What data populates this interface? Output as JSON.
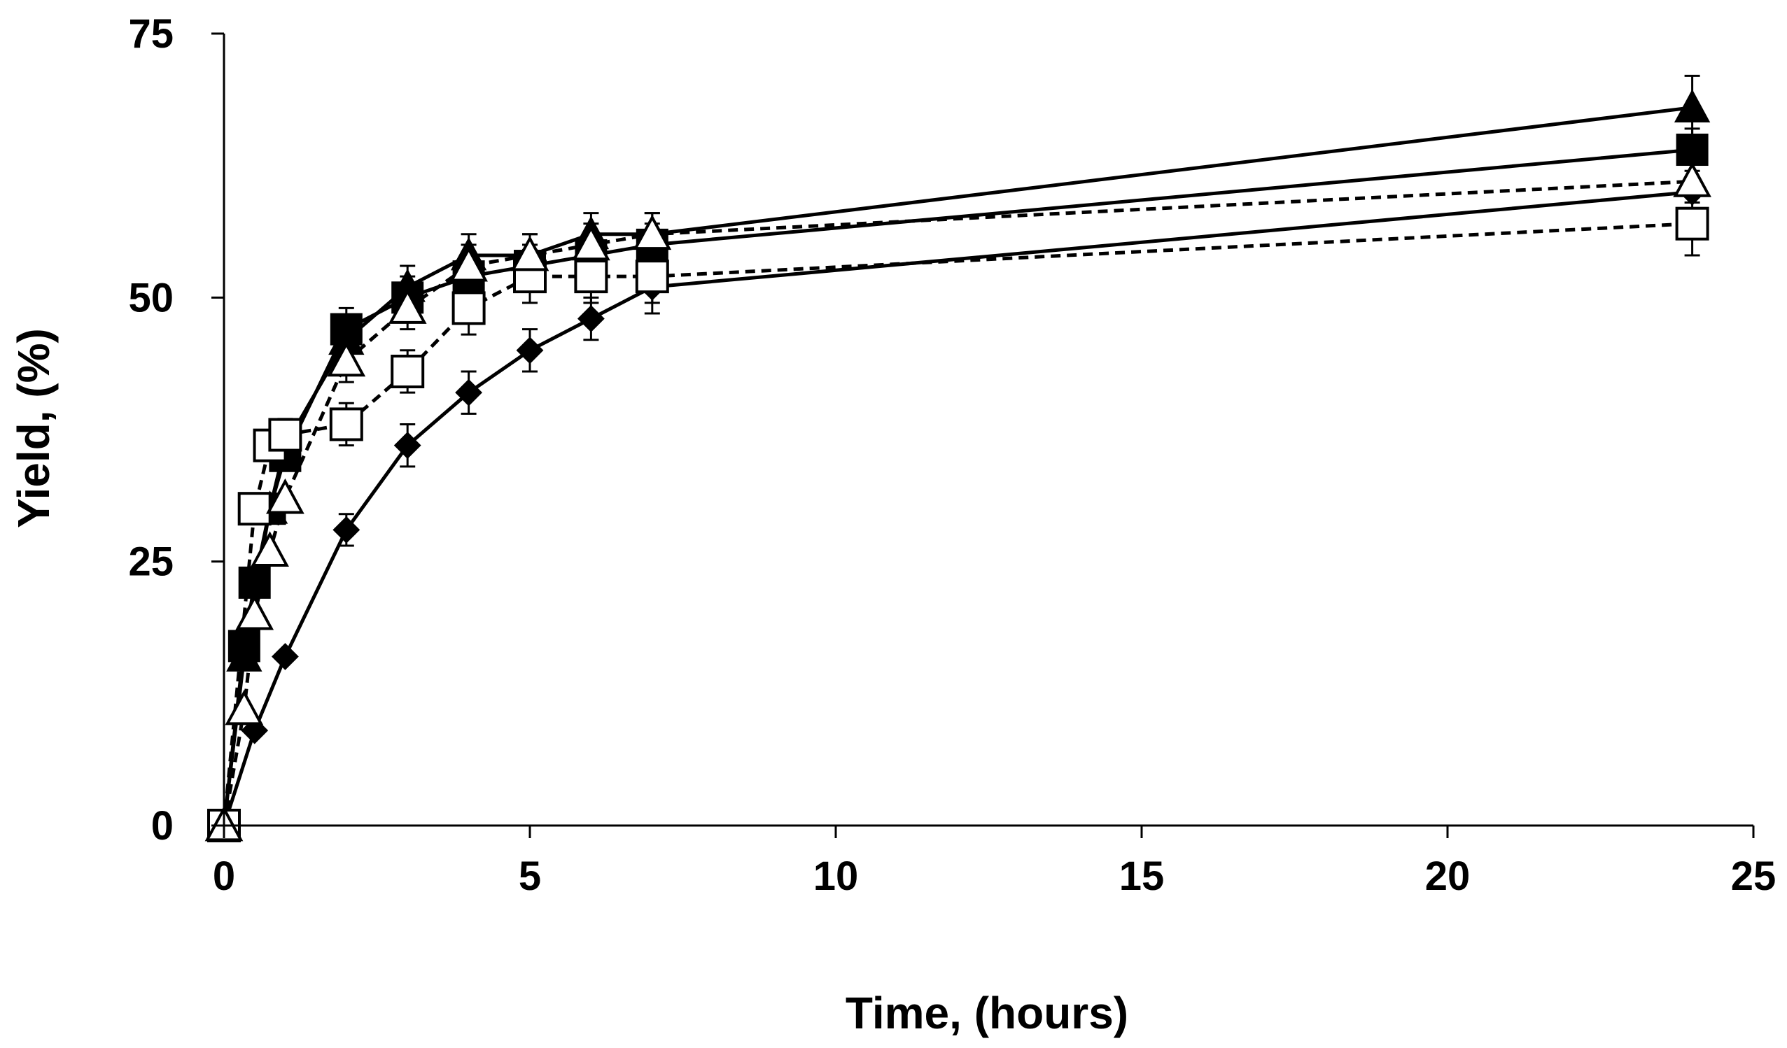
{
  "chart_data": {
    "type": "line",
    "title": "",
    "xlabel": "Time, (hours)",
    "ylabel": "Yield, (%)",
    "xlim": [
      0,
      25
    ],
    "ylim": [
      0,
      75
    ],
    "xticks": [
      0,
      5,
      10,
      15,
      20,
      25
    ],
    "yticks": [
      0,
      25,
      50,
      75
    ],
    "xtick_labels": [
      "0",
      "5",
      "10",
      "15",
      "20",
      "25"
    ],
    "ytick_labels": [
      "0",
      "25",
      "50",
      "75"
    ],
    "grid": false,
    "legend": "none",
    "series": [
      {
        "name": "filled diamond",
        "marker": "diamond-filled",
        "line": "solid",
        "x": [
          0,
          0.5,
          1,
          2,
          3,
          4,
          5,
          6,
          7,
          24
        ],
        "y": [
          0,
          9,
          16,
          28,
          36,
          41,
          45,
          48,
          51,
          60
        ],
        "err": [
          0,
          0,
          0,
          1.5,
          2,
          2,
          2,
          2,
          2.5,
          0
        ]
      },
      {
        "name": "filled square",
        "marker": "square-filled",
        "line": "solid",
        "x": [
          0,
          0.33,
          0.5,
          0.75,
          1,
          2,
          3,
          4,
          5,
          6,
          7,
          24
        ],
        "y": [
          0,
          17,
          23,
          30,
          35,
          47,
          50,
          52,
          53,
          54,
          55,
          64
        ],
        "err": [
          0,
          0,
          0,
          0,
          0,
          2,
          2,
          2,
          2,
          2,
          2,
          2
        ]
      },
      {
        "name": "filled triangle",
        "marker": "triangle-filled",
        "line": "solid",
        "x": [
          0,
          0.33,
          0.75,
          1,
          2,
          3,
          4,
          5,
          6,
          7,
          24
        ],
        "y": [
          0,
          16,
          30,
          36,
          46,
          51,
          54,
          54,
          56,
          56,
          68
        ],
        "err": [
          0,
          0,
          0,
          0,
          2,
          2,
          2,
          2,
          2,
          2,
          3
        ]
      },
      {
        "name": "open square",
        "marker": "square-open",
        "line": "dashed",
        "x": [
          0,
          0.5,
          0.75,
          1,
          2,
          3,
          4,
          5,
          6,
          7,
          24
        ],
        "y": [
          0,
          30,
          36,
          37,
          38,
          43,
          49,
          52,
          52,
          52,
          57
        ],
        "err": [
          0,
          0,
          0,
          1.5,
          2,
          2,
          2.5,
          2.5,
          2.5,
          2.5,
          3
        ]
      },
      {
        "name": "open triangle",
        "marker": "triangle-open",
        "line": "dashed",
        "x": [
          0,
          0.33,
          0.5,
          0.75,
          1,
          2,
          3,
          4,
          5,
          6,
          7,
          24
        ],
        "y": [
          0,
          11,
          20,
          26,
          31,
          44,
          49,
          53,
          54,
          55,
          56,
          61
        ],
        "err": [
          0,
          0,
          0,
          0,
          0,
          2,
          2,
          2,
          2,
          2,
          2,
          2
        ]
      }
    ]
  }
}
